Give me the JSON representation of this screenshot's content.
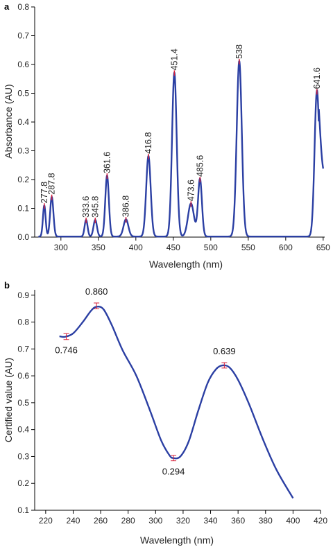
{
  "chart_data": [
    {
      "panel_label": "a",
      "type": "line",
      "xlabel": "Wavelength (nm)",
      "ylabel": "Absorbance (AU)",
      "xlim": [
        265,
        652
      ],
      "ylim": [
        0.0,
        0.8
      ],
      "x_ticks": [
        300,
        350,
        400,
        450,
        500,
        550,
        600,
        650
      ],
      "y_ticks": [
        0.0,
        0.1,
        0.2,
        0.3,
        0.4,
        0.5,
        0.6,
        0.7,
        0.8
      ],
      "y_tick_labels": [
        "0.0",
        "0.1",
        "0.2",
        "0.3",
        "0.4",
        "0.5",
        "0.6",
        "0.7",
        "0.8"
      ],
      "grid": false,
      "curve_color": "#2b3fa3",
      "marker_color": "#d6203a",
      "baseline": 0.002,
      "peaks": [
        {
          "label": "277.8",
          "x": 277.8,
          "y": 0.108,
          "width": 1.8
        },
        {
          "label": "287.8",
          "x": 287.8,
          "y": 0.138,
          "width": 2.2
        },
        {
          "label": "333.6",
          "x": 333.6,
          "y": 0.058,
          "width": 2.0
        },
        {
          "label": "345.8",
          "x": 345.8,
          "y": 0.058,
          "width": 2.3
        },
        {
          "label": "361.6",
          "x": 361.6,
          "y": 0.212,
          "width": 2.4
        },
        {
          "label": "386.8",
          "x": 386.8,
          "y": 0.06,
          "width": 3.2
        },
        {
          "label": "416.8",
          "x": 416.8,
          "y": 0.28,
          "width": 3.0
        },
        {
          "label": "451.4",
          "x": 451.4,
          "y": 0.57,
          "width": 3.1
        },
        {
          "label": "473.6",
          "x": 473.6,
          "y": 0.115,
          "width": 4.0
        },
        {
          "label": "485.6",
          "x": 485.6,
          "y": 0.2,
          "width": 2.6
        },
        {
          "label": "538",
          "x": 538.0,
          "y": 0.61,
          "width": 3.4
        },
        {
          "label": "641.6",
          "x": 641.6,
          "y": 0.505,
          "width": 3.1
        }
      ],
      "end_point": {
        "x": 650,
        "y": 0.21
      }
    },
    {
      "panel_label": "b",
      "type": "line",
      "xlabel": "Wavelength (nm)",
      "ylabel": "Certified value (AU)",
      "xlim": [
        212,
        420
      ],
      "ylim": [
        0.1,
        0.92
      ],
      "x_ticks": [
        220,
        240,
        260,
        280,
        300,
        320,
        340,
        360,
        380,
        400,
        420
      ],
      "y_ticks": [
        0.1,
        0.2,
        0.3,
        0.4,
        0.5,
        0.6,
        0.7,
        0.8,
        0.9
      ],
      "y_tick_labels": [
        "0.1",
        "0.2",
        "0.3",
        "0.4",
        "0.5",
        "0.6",
        "0.7",
        "0.8",
        "0.9"
      ],
      "grid": false,
      "curve_color": "#2b3fa3",
      "marker_color": "#d6203a",
      "x": [
        230,
        234,
        240,
        247,
        253,
        257,
        262,
        268,
        276,
        286,
        296,
        304,
        310,
        313,
        318,
        324,
        331,
        338,
        344,
        349,
        354,
        360,
        368,
        378,
        388,
        400
      ],
      "y": [
        0.747,
        0.745,
        0.758,
        0.8,
        0.842,
        0.857,
        0.848,
        0.79,
        0.695,
        0.6,
        0.47,
        0.36,
        0.305,
        0.294,
        0.3,
        0.355,
        0.47,
        0.575,
        0.625,
        0.639,
        0.63,
        0.585,
        0.495,
        0.365,
        0.25,
        0.145
      ],
      "points": [
        {
          "label": "0.746",
          "x": 235,
          "y": 0.746,
          "err": 0.011,
          "label_pos": "below"
        },
        {
          "label": "0.860",
          "x": 257,
          "y": 0.86,
          "err": 0.011,
          "label_pos": "above"
        },
        {
          "label": "0.294",
          "x": 313,
          "y": 0.294,
          "err": 0.01,
          "label_pos": "below"
        },
        {
          "label": "0.639",
          "x": 350,
          "y": 0.639,
          "err": 0.01,
          "label_pos": "above"
        }
      ]
    }
  ]
}
